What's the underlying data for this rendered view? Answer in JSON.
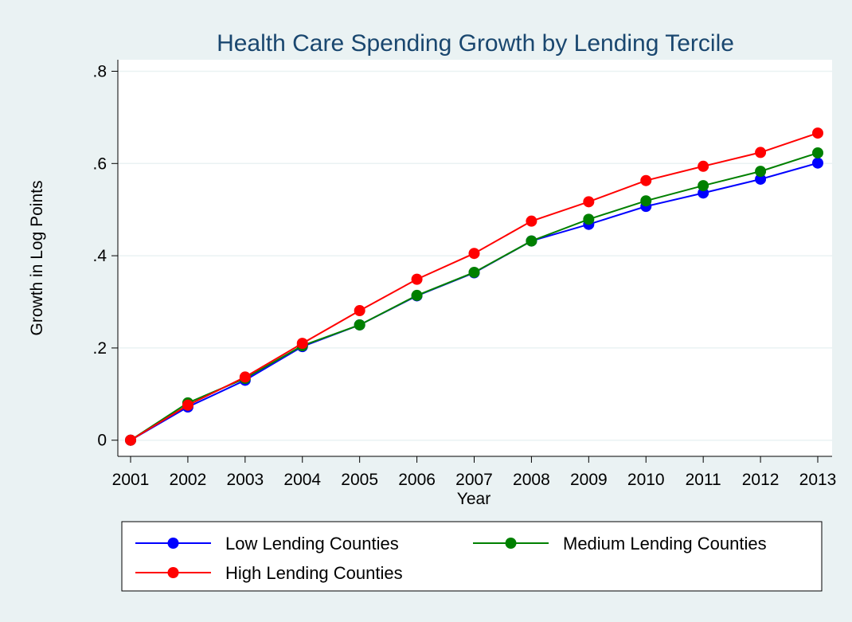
{
  "chart_data": {
    "type": "line",
    "title": "Health Care Spending Growth by Lending Tercile",
    "xlabel": "Year",
    "ylabel": "Growth in Log Points",
    "x": [
      2001,
      2002,
      2003,
      2004,
      2005,
      2006,
      2007,
      2008,
      2009,
      2010,
      2011,
      2012,
      2013
    ],
    "ylim": [
      -0.035,
      0.825
    ],
    "yticks": [
      0,
      0.2,
      0.4,
      0.6,
      0.8
    ],
    "ytick_labels": [
      "0",
      ".2",
      ".4",
      ".6",
      ".8"
    ],
    "grid": true,
    "legend_position": "bottom",
    "series": [
      {
        "name": "Low Lending Counties",
        "color": "#0000ff",
        "values": [
          0,
          0.072,
          0.13,
          0.203,
          0.25,
          0.313,
          0.363,
          0.432,
          0.468,
          0.507,
          0.536,
          0.566,
          0.601
        ]
      },
      {
        "name": "Medium Lending Counties",
        "color": "#008000",
        "values": [
          0,
          0.081,
          0.134,
          0.205,
          0.25,
          0.314,
          0.364,
          0.432,
          0.479,
          0.519,
          0.552,
          0.583,
          0.623
        ]
      },
      {
        "name": "High Lending Counties",
        "color": "#ff0000",
        "values": [
          0,
          0.076,
          0.137,
          0.21,
          0.281,
          0.349,
          0.405,
          0.475,
          0.517,
          0.563,
          0.594,
          0.624,
          0.666
        ]
      }
    ]
  },
  "colors": {
    "background": "#eaf2f3",
    "plot_background": "#ffffff",
    "title": "#1a476f",
    "grid": "#eaf2f3"
  }
}
